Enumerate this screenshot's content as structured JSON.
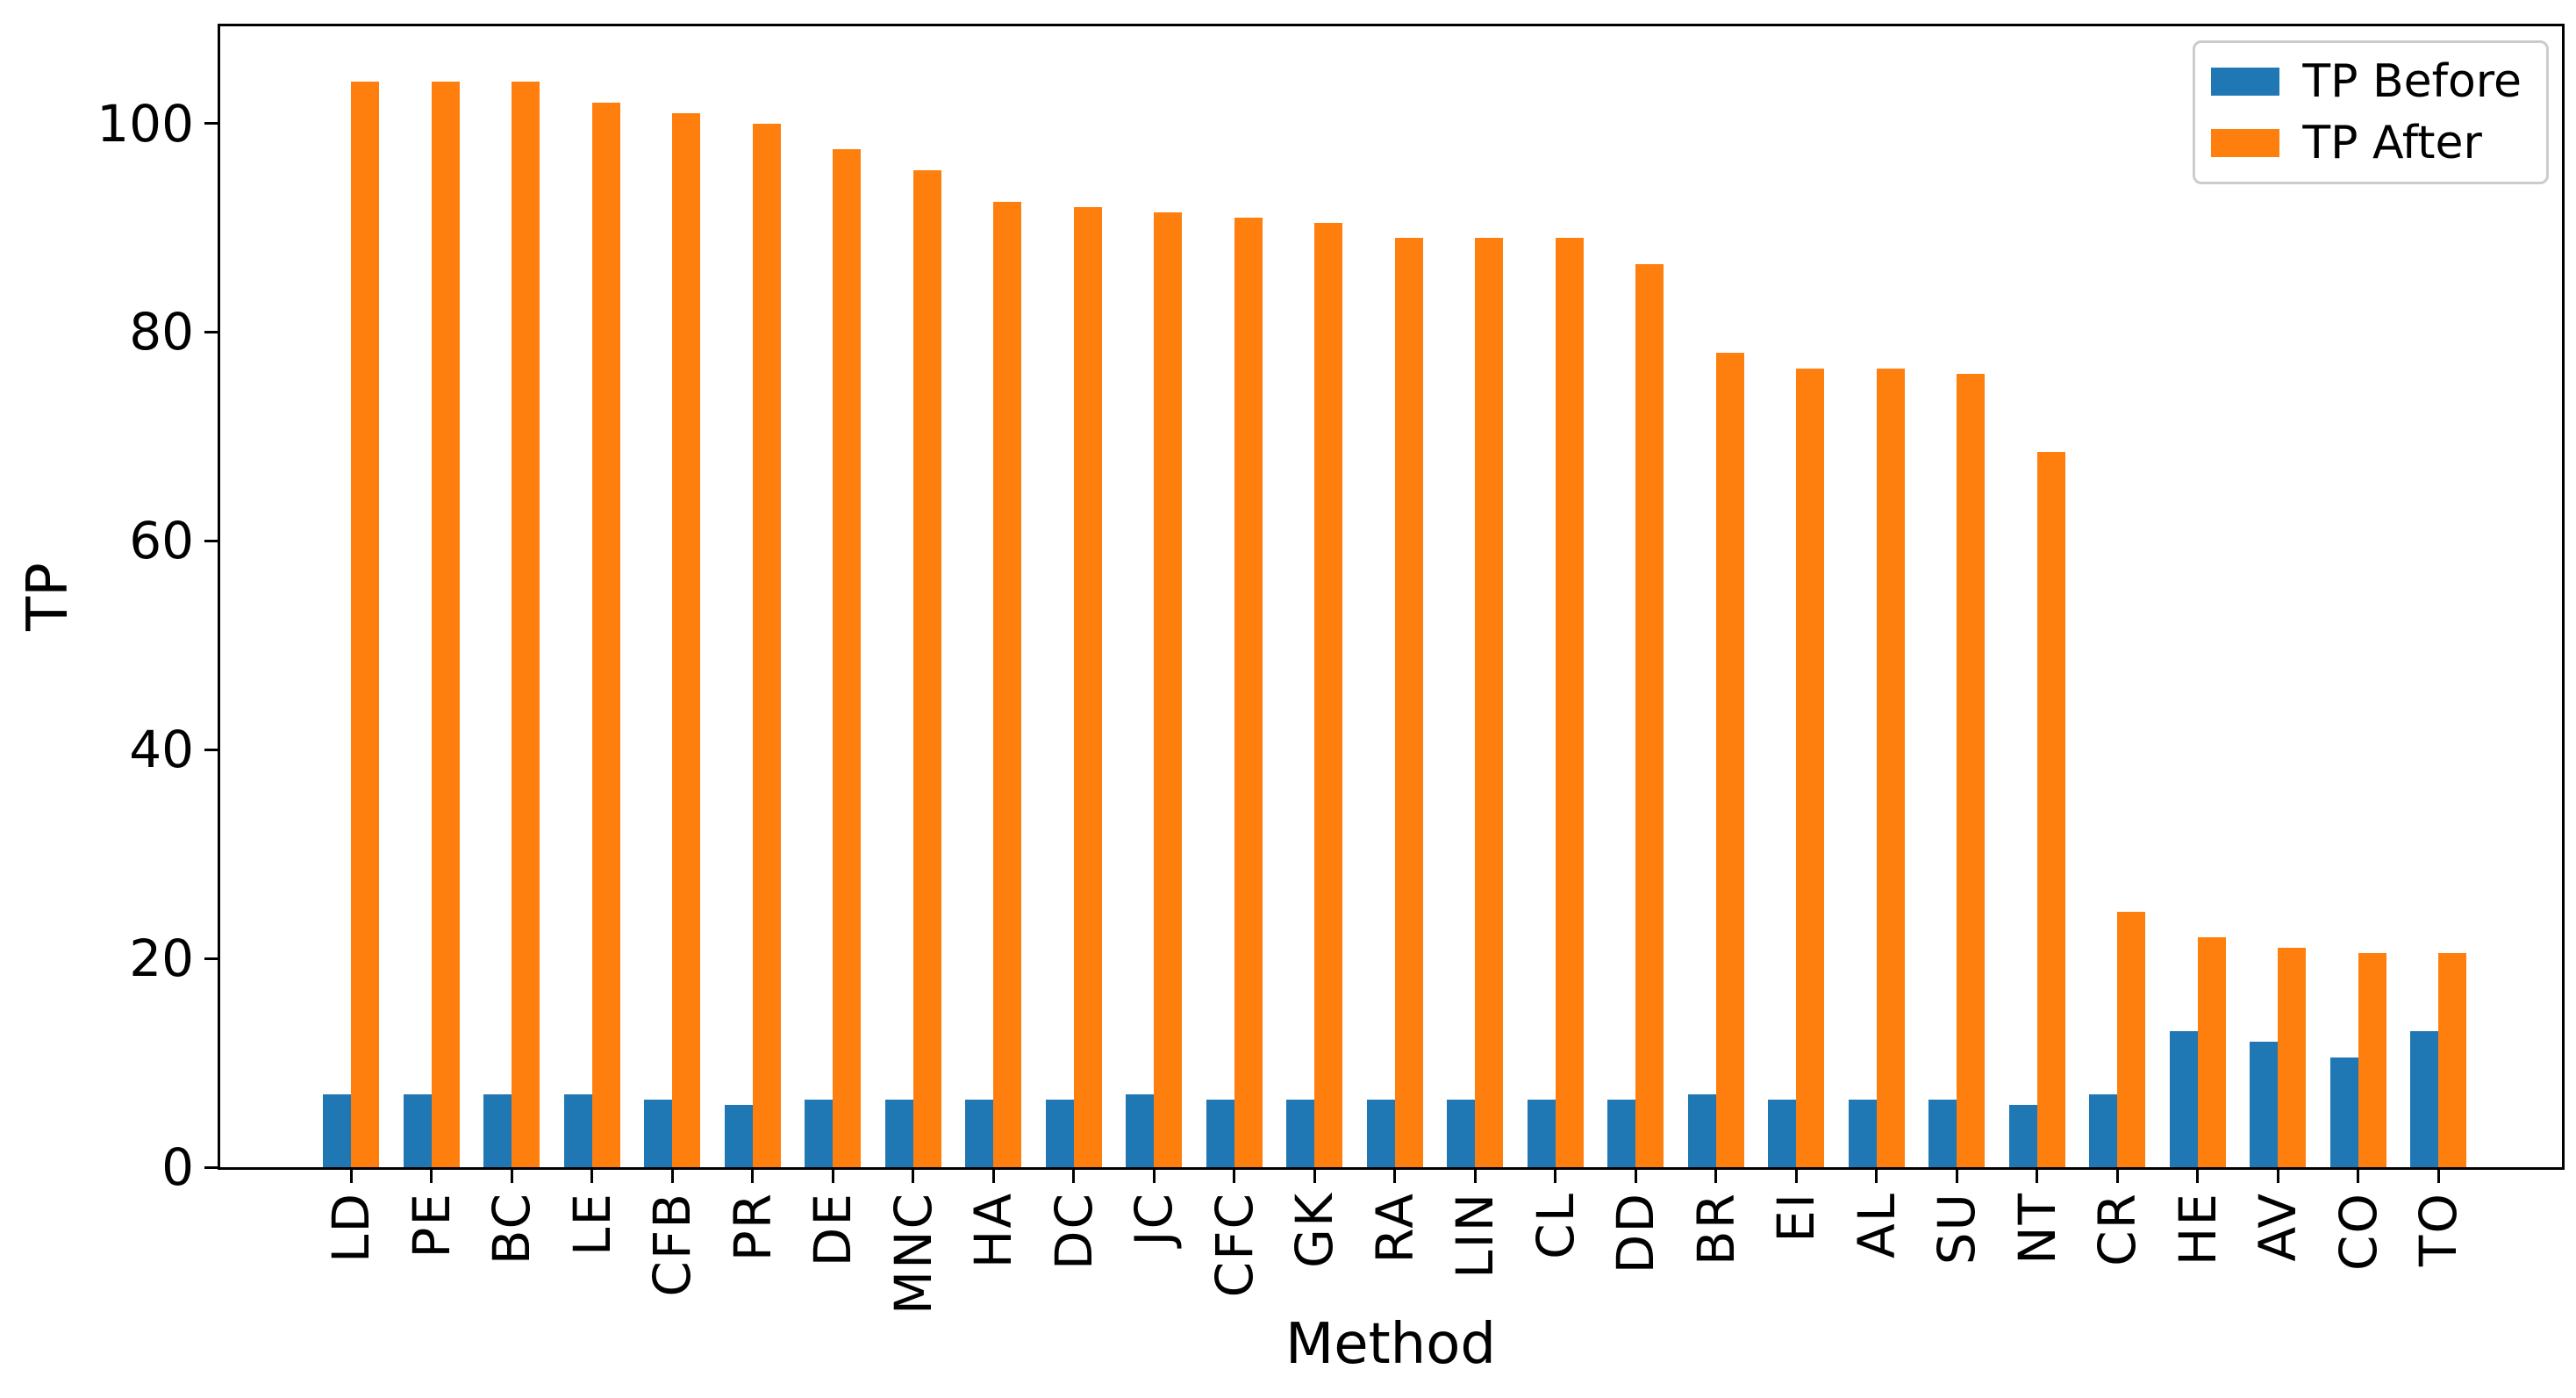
{
  "figure": {
    "background": "#ffffff",
    "text_color": "#000000"
  },
  "chart_data": {
    "type": "bar",
    "title": "",
    "xlabel": "Method",
    "ylabel": "TP",
    "categories": [
      "LD",
      "PE",
      "BC",
      "LE",
      "CFB",
      "PR",
      "DE",
      "MNC",
      "HA",
      "DC",
      "JC",
      "CFC",
      "GK",
      "RA",
      "LIN",
      "CL",
      "DD",
      "BR",
      "EI",
      "AL",
      "SU",
      "NT",
      "CR",
      "HE",
      "AV",
      "CO",
      "TO"
    ],
    "series": [
      {
        "name": "TP Before",
        "color": "#1f77b4",
        "values": [
          7,
          7,
          7,
          7,
          6.5,
          6,
          6.5,
          6.5,
          6.5,
          6.5,
          7,
          6.5,
          6.5,
          6.5,
          6.5,
          6.5,
          6.5,
          7,
          6.5,
          6.5,
          6.5,
          6,
          7,
          13,
          12,
          10.5,
          13
        ]
      },
      {
        "name": "TP After",
        "color": "#ff7f0e",
        "values": [
          104,
          104,
          104,
          102,
          101,
          100,
          97.5,
          95.5,
          92.5,
          92,
          91.5,
          91,
          90.5,
          89,
          89,
          89,
          86.5,
          78,
          76.5,
          76.5,
          76,
          68.5,
          24.5,
          22,
          21,
          20.5,
          20.5
        ]
      }
    ],
    "ylim": [
      0,
      109.3
    ],
    "yticks": [
      0,
      20,
      40,
      60,
      80,
      100
    ],
    "grid": false,
    "legend_position": "upper right",
    "xtick_rotation": 90,
    "spines": "box"
  }
}
